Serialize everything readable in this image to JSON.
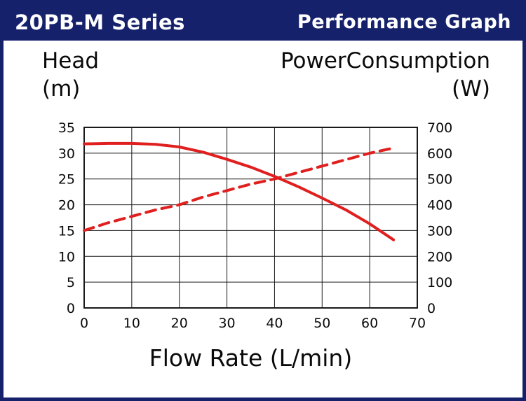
{
  "header": {
    "series_title": "20PB-M Series",
    "graph_title": "Performance Graph"
  },
  "axes": {
    "left_label_line1": "Head",
    "left_label_line2": "(m)",
    "right_label_line1": "PowerConsumption",
    "right_label_line2": "(W)",
    "x_label": "Flow Rate (L/min)"
  },
  "colors": {
    "header_bg": "#16216b",
    "line_red": "#e01f1f",
    "grid": "#1a1a1a",
    "text": "#0a0a0a"
  },
  "chart_data": {
    "type": "line",
    "title": "20PB-M Series Performance Graph",
    "xlabel": "Flow Rate (L/min)",
    "ylabel_left": "Head (m)",
    "ylabel_right": "PowerConsumption (W)",
    "xlim": [
      0,
      70
    ],
    "ylim_left": [
      0,
      35
    ],
    "ylim_right": [
      0,
      700
    ],
    "x_ticks": [
      0,
      10,
      20,
      30,
      40,
      50,
      60,
      70
    ],
    "left_ticks": [
      0,
      5,
      10,
      15,
      20,
      25,
      30,
      35
    ],
    "right_ticks": [
      0,
      100,
      200,
      300,
      400,
      500,
      600,
      700
    ],
    "grid": true,
    "legend": "none",
    "series": [
      {
        "name": "Head",
        "axis": "left",
        "style": "solid",
        "color": "#e01f1f",
        "x": [
          0,
          5,
          10,
          15,
          20,
          25,
          30,
          35,
          40,
          45,
          50,
          55,
          60,
          65
        ],
        "y": [
          31.8,
          31.9,
          31.9,
          31.7,
          31.2,
          30.2,
          28.8,
          27.3,
          25.5,
          23.5,
          21.3,
          19.0,
          16.3,
          13.2
        ]
      },
      {
        "name": "PowerConsumption",
        "axis": "right",
        "style": "dashed",
        "color": "#e01f1f",
        "x": [
          0,
          5,
          10,
          15,
          20,
          25,
          30,
          35,
          40,
          45,
          50,
          55,
          60,
          65
        ],
        "y": [
          300,
          330,
          355,
          380,
          400,
          430,
          455,
          480,
          500,
          525,
          550,
          575,
          600,
          620
        ]
      }
    ]
  }
}
